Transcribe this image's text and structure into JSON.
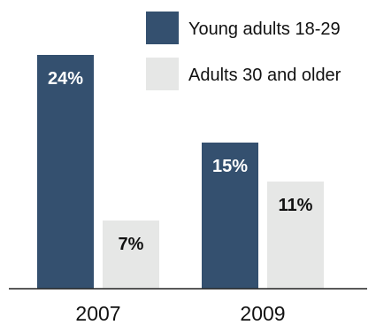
{
  "chart_data": {
    "type": "bar",
    "title": "",
    "xlabel": "",
    "ylabel": "",
    "categories": [
      "2007",
      "2009"
    ],
    "ylim": [
      0,
      24
    ],
    "grid": false,
    "legend_position": "top-right",
    "series": [
      {
        "name": "Young adults 18-29",
        "color": "#34506f",
        "label_color": "#ffffff",
        "values": [
          24,
          15
        ],
        "labels": [
          "24%",
          "15%"
        ]
      },
      {
        "name": "Adults 30 and older",
        "color": "#e6e7e6",
        "label_color": "#111111",
        "values": [
          7,
          11
        ],
        "labels": [
          "7%",
          "11%"
        ]
      }
    ]
  }
}
